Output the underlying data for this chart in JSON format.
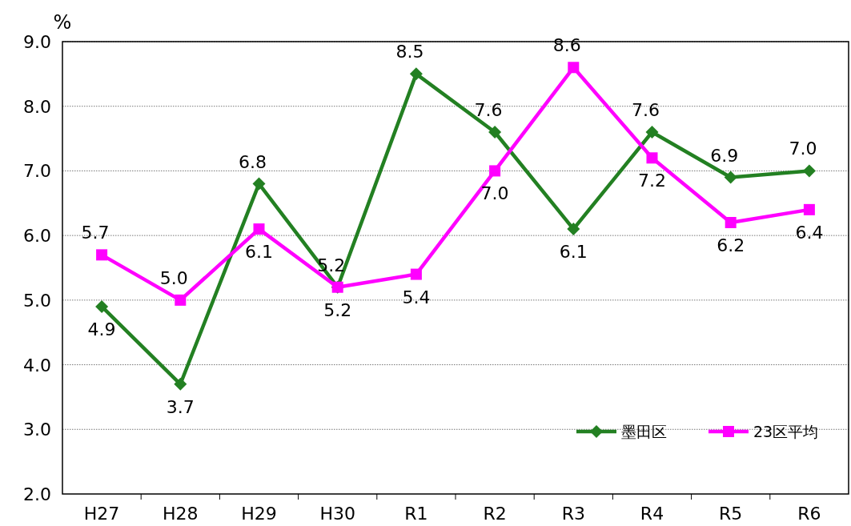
{
  "chart_data": {
    "type": "line",
    "ylabel": "%",
    "categories": [
      "H27",
      "H28",
      "H29",
      "H30",
      "R1",
      "R2",
      "R3",
      "R4",
      "R5",
      "R6"
    ],
    "series": [
      {
        "name": "墨田区",
        "color": "#238022",
        "marker": "diamond",
        "values": [
          4.9,
          3.7,
          6.8,
          5.2,
          8.5,
          7.6,
          6.1,
          7.6,
          6.9,
          7.0
        ],
        "value_labels": [
          "4.9",
          "3.7",
          "6.8",
          "5.2",
          "8.5",
          "7.6",
          "6.1",
          "7.6",
          "6.9",
          "7.0"
        ]
      },
      {
        "name": "23区平均",
        "color": "#ff00ff",
        "marker": "square",
        "values": [
          5.7,
          5.0,
          6.1,
          5.2,
          5.4,
          7.0,
          8.6,
          7.2,
          6.2,
          6.4
        ],
        "value_labels": [
          "5.7",
          "5.0",
          "6.1",
          "5.2",
          "5.4",
          "7.0",
          "8.6",
          "7.2",
          "6.2",
          "6.4"
        ]
      }
    ],
    "ylim": [
      2.0,
      9.0
    ],
    "yticks": [
      {
        "value": 2,
        "label": "2.0"
      },
      {
        "value": 3,
        "label": "3.0"
      },
      {
        "value": 4,
        "label": "4.0"
      },
      {
        "value": 5,
        "label": "5.0"
      },
      {
        "value": 6,
        "label": "6.0"
      },
      {
        "value": 7,
        "label": "7.0"
      },
      {
        "value": 8,
        "label": "8.0"
      },
      {
        "value": 9,
        "label": "9.0"
      }
    ],
    "grid": "y",
    "legend": "bottom right",
    "line_style": "solid"
  }
}
